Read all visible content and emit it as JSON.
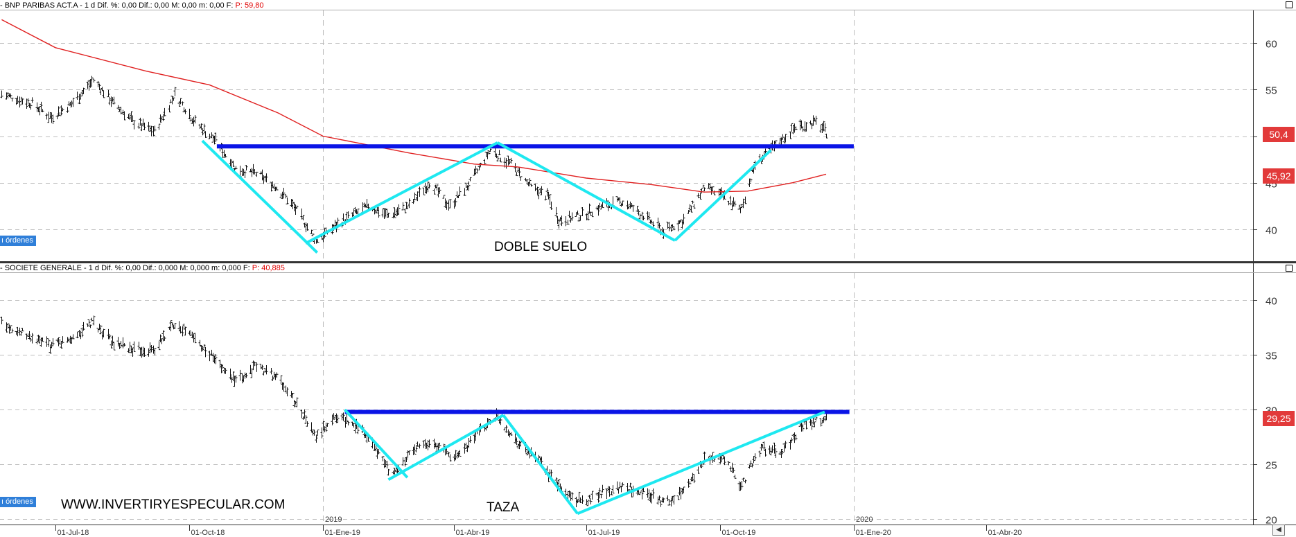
{
  "top": {
    "info_text": "- BNP PARIBAS ACT.A  -  1 d  Dif. %: 0,00  Dif.: 0,00  M: 0,00  m: 0,00  F:",
    "info_value": "P: 59,80",
    "orders_label": "ı órdenes",
    "annotation": "DOBLE SUELO",
    "price_last": "50,4",
    "price_ma": "45,92"
  },
  "bottom": {
    "info_text": "- SOCIETE GENERALE  -  1 d  Dif. %: 0,00  Dif.: 0,000  M: 0,000  m: 0,000  F:",
    "info_value": "P: 40,885",
    "orders_label": "ı órdenes",
    "annotation": "TAZA",
    "watermark": "WWW.INVERTIRYESPECULAR.COM",
    "price_last": "29,25"
  },
  "colors": {
    "bars": "#111111",
    "moving_average": "#e02020",
    "resistance": "#0a14e6",
    "pattern": "#1ee8f0",
    "price_tag": "#e23a3a"
  },
  "chart_data": [
    {
      "type": "line",
      "chart_style": "ohlc-bars",
      "title": "BNP PARIBAS ACT.A",
      "timeframe": "1 d",
      "y_ticks": [
        40,
        45,
        50,
        55,
        60
      ],
      "ylim": [
        36.5,
        63.5
      ],
      "x_ticks": [
        "01-Jul-18",
        "01-Oct-18",
        "01-Ene-19",
        "01-Abr-19",
        "01-Jul-19",
        "01-Oct-19",
        "01-Ene-20",
        "01-Abr-20"
      ],
      "year_markers": [
        "2019",
        "2020"
      ],
      "series": [
        {
          "kind": "price",
          "points": [
            {
              "x": "2018-05-25",
              "y": 54.5
            },
            {
              "x": "2018-06-15",
              "y": 53.5
            },
            {
              "x": "2018-06-28",
              "y": 52.0
            },
            {
              "x": "2018-07-12",
              "y": 53.5
            },
            {
              "x": "2018-07-27",
              "y": 56.0
            },
            {
              "x": "2018-08-10",
              "y": 53.5
            },
            {
              "x": "2018-08-24",
              "y": 51.5
            },
            {
              "x": "2018-09-07",
              "y": 50.5
            },
            {
              "x": "2018-09-21",
              "y": 54.5
            },
            {
              "x": "2018-10-05",
              "y": 51.5
            },
            {
              "x": "2018-10-19",
              "y": 49.5
            },
            {
              "x": "2018-11-02",
              "y": 46.5
            },
            {
              "x": "2018-11-16",
              "y": 46.0
            },
            {
              "x": "2018-11-30",
              "y": 44.5
            },
            {
              "x": "2018-12-14",
              "y": 42.0
            },
            {
              "x": "2018-12-27",
              "y": 38.8
            },
            {
              "x": "2019-01-15",
              "y": 41.0
            },
            {
              "x": "2019-02-01",
              "y": 42.5
            },
            {
              "x": "2019-02-15",
              "y": 41.5
            },
            {
              "x": "2019-03-01",
              "y": 42.5
            },
            {
              "x": "2019-03-15",
              "y": 45.0
            },
            {
              "x": "2019-03-29",
              "y": 42.5
            },
            {
              "x": "2019-04-12",
              "y": 45.0
            },
            {
              "x": "2019-04-26",
              "y": 48.5
            },
            {
              "x": "2019-05-10",
              "y": 47.0
            },
            {
              "x": "2019-05-24",
              "y": 44.5
            },
            {
              "x": "2019-06-05",
              "y": 43.5
            },
            {
              "x": "2019-06-12",
              "y": 41.0
            },
            {
              "x": "2019-06-28",
              "y": 41.5
            },
            {
              "x": "2019-07-12",
              "y": 42.5
            },
            {
              "x": "2019-07-26",
              "y": 43.0
            },
            {
              "x": "2019-08-09",
              "y": 41.5
            },
            {
              "x": "2019-08-23",
              "y": 39.8
            },
            {
              "x": "2019-09-06",
              "y": 41.0
            },
            {
              "x": "2019-09-20",
              "y": 44.5
            },
            {
              "x": "2019-10-04",
              "y": 43.5
            },
            {
              "x": "2019-10-15",
              "y": 42.0
            },
            {
              "x": "2019-10-25",
              "y": 47.0
            },
            {
              "x": "2019-11-08",
              "y": 49.0
            },
            {
              "x": "2019-11-22",
              "y": 51.0
            },
            {
              "x": "2019-12-06",
              "y": 51.5
            },
            {
              "x": "2019-12-13",
              "y": 50.4
            }
          ]
        },
        {
          "kind": "moving-average",
          "points": [
            {
              "x": "2018-05-25",
              "y": 62.5
            },
            {
              "x": "2018-07-01",
              "y": 59.5
            },
            {
              "x": "2018-09-01",
              "y": 57.0
            },
            {
              "x": "2018-10-15",
              "y": 55.5
            },
            {
              "x": "2018-12-01",
              "y": 52.5
            },
            {
              "x": "2019-01-01",
              "y": 50.0
            },
            {
              "x": "2019-03-01",
              "y": 48.2
            },
            {
              "x": "2019-04-15",
              "y": 47.0
            },
            {
              "x": "2019-05-15",
              "y": 46.7
            },
            {
              "x": "2019-07-01",
              "y": 45.5
            },
            {
              "x": "2019-08-15",
              "y": 44.8
            },
            {
              "x": "2019-09-20",
              "y": 44.0
            },
            {
              "x": "2019-10-20",
              "y": 44.1
            },
            {
              "x": "2019-11-20",
              "y": 45.0
            },
            {
              "x": "2019-12-13",
              "y": 45.92
            }
          ]
        }
      ],
      "annotations": [
        {
          "kind": "resistance",
          "from": {
            "x": "2018-10-20",
            "y": 48.9
          },
          "to": {
            "x": "2020-01-01",
            "y": 48.9
          }
        },
        {
          "kind": "pattern",
          "from": {
            "x": "2018-10-10",
            "y": 49.5
          },
          "to": {
            "x": "2018-12-28",
            "y": 37.5
          }
        },
        {
          "kind": "pattern",
          "from": {
            "x": "2018-12-20",
            "y": 38.5
          },
          "to": {
            "x": "2019-05-01",
            "y": 49.3
          }
        },
        {
          "kind": "pattern",
          "from": {
            "x": "2019-05-01",
            "y": 49.3
          },
          "to": {
            "x": "2019-08-31",
            "y": 38.8
          }
        },
        {
          "kind": "pattern",
          "from": {
            "x": "2019-08-31",
            "y": 38.8
          },
          "to": {
            "x": "2019-11-05",
            "y": 48.5
          }
        }
      ]
    },
    {
      "type": "line",
      "chart_style": "ohlc-bars",
      "title": "SOCIETE GENERALE",
      "timeframe": "1 d",
      "y_ticks": [
        20,
        25,
        30,
        35,
        40
      ],
      "ylim": [
        19.5,
        42.5
      ],
      "x_ticks": [
        "01-Jul-18",
        "01-Oct-18",
        "01-Ene-19",
        "01-Abr-19",
        "01-Jul-19",
        "01-Oct-19",
        "01-Ene-20",
        "01-Abr-20"
      ],
      "year_markers": [
        "2019",
        "2020"
      ],
      "series": [
        {
          "kind": "price",
          "points": [
            {
              "x": "2018-05-25",
              "y": 38.0
            },
            {
              "x": "2018-06-15",
              "y": 36.5
            },
            {
              "x": "2018-06-28",
              "y": 35.8
            },
            {
              "x": "2018-07-12",
              "y": 36.5
            },
            {
              "x": "2018-07-27",
              "y": 38.0
            },
            {
              "x": "2018-08-10",
              "y": 36.0
            },
            {
              "x": "2018-08-24",
              "y": 35.5
            },
            {
              "x": "2018-09-07",
              "y": 35.5
            },
            {
              "x": "2018-09-21",
              "y": 38.0
            },
            {
              "x": "2018-10-05",
              "y": 36.5
            },
            {
              "x": "2018-10-19",
              "y": 34.5
            },
            {
              "x": "2018-11-02",
              "y": 32.5
            },
            {
              "x": "2018-11-16",
              "y": 34.0
            },
            {
              "x": "2018-11-30",
              "y": 33.0
            },
            {
              "x": "2018-12-14",
              "y": 30.5
            },
            {
              "x": "2018-12-27",
              "y": 27.5
            },
            {
              "x": "2019-01-10",
              "y": 29.5
            },
            {
              "x": "2019-01-25",
              "y": 28.5
            },
            {
              "x": "2019-02-08",
              "y": 26.0
            },
            {
              "x": "2019-02-18",
              "y": 24.0
            },
            {
              "x": "2019-03-05",
              "y": 26.5
            },
            {
              "x": "2019-03-19",
              "y": 27.0
            },
            {
              "x": "2019-04-01",
              "y": 25.5
            },
            {
              "x": "2019-04-15",
              "y": 27.5
            },
            {
              "x": "2019-04-30",
              "y": 29.5
            },
            {
              "x": "2019-05-15",
              "y": 27.0
            },
            {
              "x": "2019-05-31",
              "y": 25.0
            },
            {
              "x": "2019-06-15",
              "y": 22.5
            },
            {
              "x": "2019-06-28",
              "y": 21.5
            },
            {
              "x": "2019-07-12",
              "y": 22.5
            },
            {
              "x": "2019-07-26",
              "y": 23.0
            },
            {
              "x": "2019-08-09",
              "y": 22.5
            },
            {
              "x": "2019-08-23",
              "y": 21.5
            },
            {
              "x": "2019-09-06",
              "y": 22.5
            },
            {
              "x": "2019-09-20",
              "y": 25.5
            },
            {
              "x": "2019-10-04",
              "y": 25.5
            },
            {
              "x": "2019-10-15",
              "y": 23.0
            },
            {
              "x": "2019-10-29",
              "y": 26.5
            },
            {
              "x": "2019-11-12",
              "y": 26.0
            },
            {
              "x": "2019-11-26",
              "y": 28.5
            },
            {
              "x": "2019-12-10",
              "y": 29.0
            },
            {
              "x": "2019-12-13",
              "y": 29.25
            }
          ]
        }
      ],
      "annotations": [
        {
          "kind": "resistance",
          "from": {
            "x": "2019-01-16",
            "y": 29.8
          },
          "to": {
            "x": "2019-12-29",
            "y": 29.8
          }
        },
        {
          "kind": "pattern",
          "from": {
            "x": "2019-01-16",
            "y": 30.0
          },
          "to": {
            "x": "2019-02-28",
            "y": 23.8
          }
        },
        {
          "kind": "pattern",
          "from": {
            "x": "2019-02-15",
            "y": 23.6
          },
          "to": {
            "x": "2019-05-05",
            "y": 29.5
          }
        },
        {
          "kind": "pattern",
          "from": {
            "x": "2019-05-05",
            "y": 29.5
          },
          "to": {
            "x": "2019-06-25",
            "y": 20.5
          }
        },
        {
          "kind": "pattern",
          "from": {
            "x": "2019-06-25",
            "y": 20.5
          },
          "to": {
            "x": "2019-12-12",
            "y": 29.8
          }
        }
      ]
    }
  ]
}
